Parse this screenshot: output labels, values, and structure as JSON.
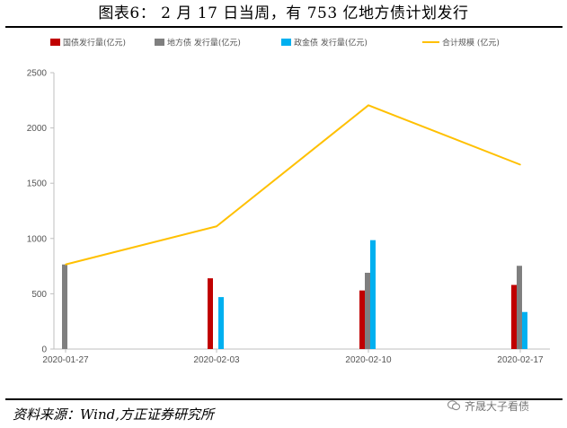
{
  "header": {
    "title": "图表6：  2 月 17 日当周，有 753 亿地方债计划发行"
  },
  "footer": {
    "source": "资料来源：Wind,方正证券研究所",
    "watermark": "齐晟大子看债"
  },
  "chart_data": {
    "type": "bar",
    "categories": [
      "2020-01-27",
      "2020-02-03",
      "2020-02-10",
      "2020-02-17"
    ],
    "series": [
      {
        "name": "国债发行量(亿元)",
        "type": "bar",
        "color": "#C00000",
        "values": [
          0,
          640,
          530,
          580
        ]
      },
      {
        "name": "地方债 发行量(亿元)",
        "type": "bar",
        "color": "#7F7F7F",
        "values": [
          765,
          0,
          690,
          753
        ]
      },
      {
        "name": "政金债 发行量(亿元)",
        "type": "bar",
        "color": "#00B0F0",
        "values": [
          0,
          470,
          985,
          335
        ]
      },
      {
        "name": "合计规模  (亿元)",
        "type": "line",
        "color": "#FFC000",
        "values": [
          765,
          1110,
          2205,
          1668
        ]
      }
    ],
    "yticks": [
      "0",
      "500",
      "1000",
      "1500",
      "2000",
      "2500"
    ],
    "ylim": [
      0,
      2500
    ],
    "grid": false,
    "legend": "top"
  }
}
